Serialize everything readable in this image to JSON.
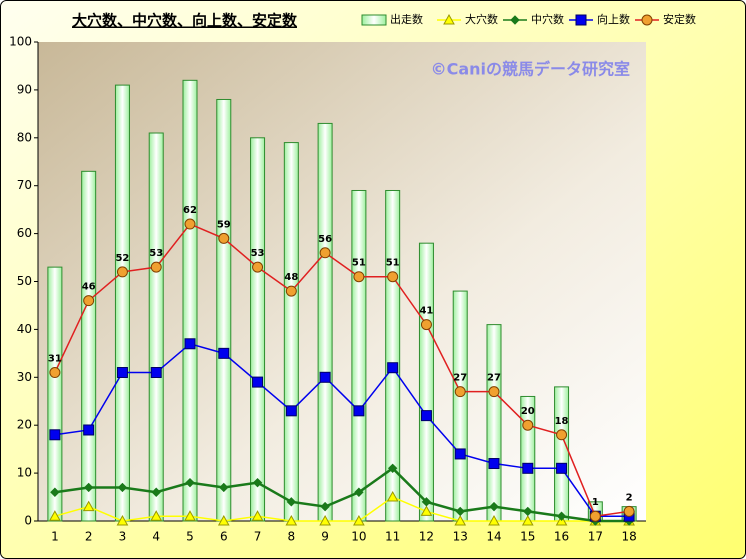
{
  "chart_data": {
    "type": "bar",
    "title": "大穴数、中穴数、向上数、安定数",
    "watermark": "©Caniの競馬データ研究室",
    "categories": [
      "1",
      "2",
      "3",
      "4",
      "5",
      "6",
      "7",
      "8",
      "9",
      "10",
      "11",
      "12",
      "13",
      "14",
      "15",
      "16",
      "17",
      "18"
    ],
    "ylim": [
      0,
      100
    ],
    "yticks": [
      0,
      10,
      20,
      30,
      40,
      50,
      60,
      70,
      80,
      90,
      100
    ],
    "series": [
      {
        "name": "出走数",
        "marker": "bar",
        "color": "#2e8b2e",
        "values": [
          53,
          73,
          91,
          81,
          92,
          88,
          80,
          79,
          83,
          69,
          69,
          58,
          48,
          41,
          26,
          28,
          4,
          3
        ]
      },
      {
        "name": "大穴数",
        "marker": "triangle",
        "color": "#ffff00",
        "values": [
          1,
          3,
          0,
          1,
          1,
          0,
          1,
          0,
          0,
          0,
          5,
          2,
          0,
          0,
          0,
          0,
          0,
          0
        ]
      },
      {
        "name": "中穴数",
        "marker": "diamond",
        "color": "#1a7a1a",
        "values": [
          6,
          7,
          7,
          6,
          8,
          7,
          8,
          4,
          3,
          6,
          11,
          4,
          2,
          3,
          2,
          1,
          0,
          0
        ]
      },
      {
        "name": "向上数",
        "marker": "square",
        "color": "#0000ee",
        "values": [
          18,
          19,
          31,
          31,
          37,
          35,
          29,
          23,
          30,
          23,
          32,
          22,
          14,
          12,
          11,
          11,
          1,
          1
        ]
      },
      {
        "name": "安定数",
        "marker": "circle",
        "color": "#e02020",
        "values": [
          31,
          46,
          52,
          53,
          62,
          59,
          53,
          48,
          56,
          51,
          51,
          41,
          27,
          27,
          20,
          18,
          1,
          2
        ],
        "data_labels": true
      }
    ]
  }
}
